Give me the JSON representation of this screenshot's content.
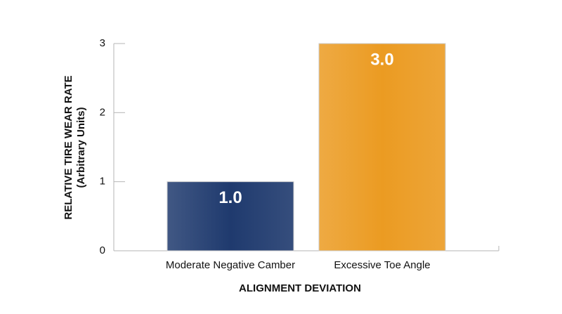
{
  "chart_data": {
    "type": "bar",
    "categories": [
      "Moderate Negative Camber",
      "Excessive Toe Angle"
    ],
    "values": [
      1.0,
      3.0
    ],
    "value_labels": [
      "1.0",
      "3.0"
    ],
    "colors": [
      "#1f3a6e",
      "#eb9b22"
    ],
    "ylim": [
      0,
      3
    ],
    "yticks": [
      0,
      1,
      2,
      3
    ],
    "ylabel": [
      "RELATIVE TIRE WEAR RATE",
      "(Arbitrary Units)"
    ],
    "xlabel": "ALIGNMENT DEVIATION"
  }
}
